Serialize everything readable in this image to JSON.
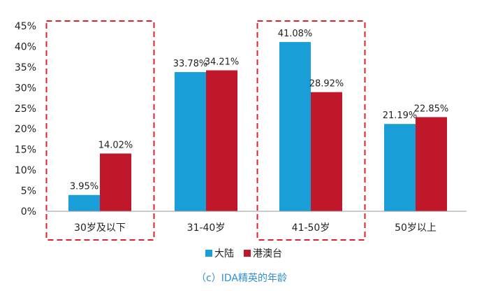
{
  "chart_data": {
    "type": "bar",
    "categories": [
      "30岁及以下",
      "31-40岁",
      "41-50岁",
      "50岁以上"
    ],
    "series": [
      {
        "name": "大陆",
        "color": "#1a9ed8",
        "values": [
          3.95,
          33.78,
          41.08,
          21.19
        ],
        "labels": [
          "3.95%",
          "33.78%",
          "41.08%",
          "21.19%"
        ]
      },
      {
        "name": "港澳台",
        "color": "#c0182a",
        "values": [
          14.02,
          34.21,
          28.92,
          22.85
        ],
        "labels": [
          "14.02%",
          "34.21%",
          "28.92%",
          "22.85%"
        ]
      }
    ],
    "ylim": [
      0,
      45
    ],
    "yticks": [
      0,
      5,
      10,
      15,
      20,
      25,
      30,
      35,
      40,
      45
    ],
    "ytick_labels": [
      "0%",
      "5%",
      "10%",
      "15%",
      "20%",
      "25%",
      "30%",
      "35%",
      "40%",
      "45%"
    ],
    "grid": false,
    "legend": "bottom-center",
    "highlighted_categories": [
      "30岁及以下",
      "41-50岁"
    ],
    "highlight_color": "#e0202a",
    "caption": "（c）IDA精英的年龄"
  }
}
